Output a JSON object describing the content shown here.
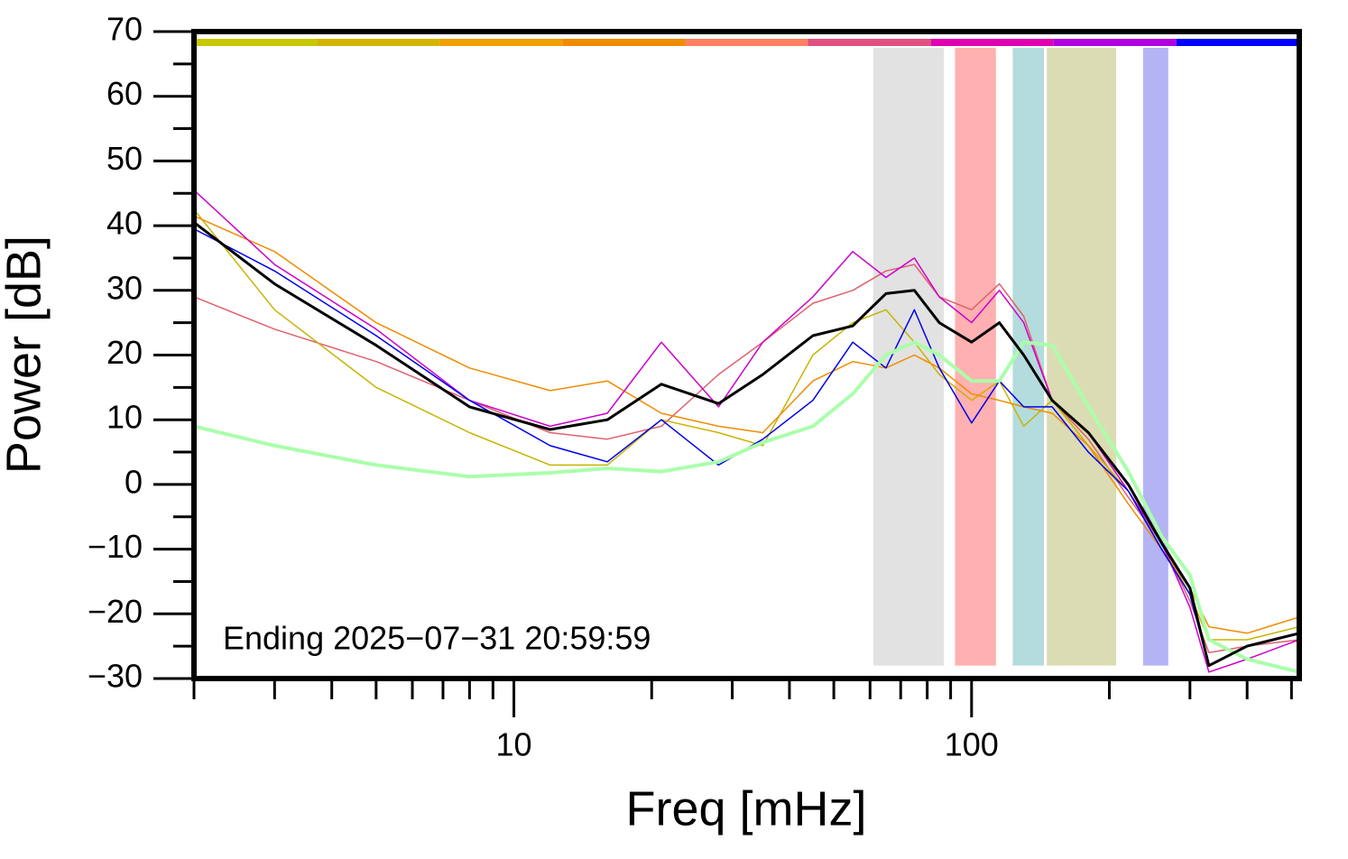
{
  "chart_data": {
    "type": "line",
    "annotation": "Ending 2025−07−31 20:59:59",
    "xlabel": "Freq [mHz]",
    "ylabel": "Power [dB]",
    "xscale": "log",
    "xlim": [
      2,
      520
    ],
    "ylim": [
      -30,
      70
    ],
    "xticks": [
      10,
      100
    ],
    "xminor": [
      2,
      3,
      4,
      5,
      6,
      7,
      8,
      9,
      20,
      30,
      40,
      50,
      60,
      70,
      80,
      90,
      200,
      300,
      400,
      500
    ],
    "yticks": [
      {
        "value": -30,
        "label": "−30"
      },
      {
        "value": -20,
        "label": "−20"
      },
      {
        "value": -10,
        "label": "−10"
      },
      0,
      10,
      20,
      30,
      40,
      50,
      60,
      70
    ],
    "yminor": [
      -25,
      -15,
      -5,
      5,
      15,
      25,
      35,
      45,
      55,
      65
    ],
    "band_ylim": [
      -28,
      67.5
    ],
    "bands": [
      {
        "x": [
          61,
          87
        ],
        "color": "#e2e2e2"
      },
      {
        "x": [
          92,
          113
        ],
        "color": "#ffb0b0"
      },
      {
        "x": [
          123,
          144
        ],
        "color": "#b4dcdc"
      },
      {
        "x": [
          146,
          207
        ],
        "color": "#dcdcb4"
      },
      {
        "x": [
          237,
          269
        ],
        "color": "#b4b4f5"
      }
    ],
    "color_bar": [
      "#c8c800",
      "#d4b400",
      "#f0a000",
      "#f08c00",
      "#ff7f60",
      "#e05080",
      "#e000b0",
      "#b000e0",
      "#0000ff"
    ],
    "x": [
      2,
      3,
      5,
      8,
      12,
      16,
      21,
      28,
      35,
      45,
      55,
      65,
      75,
      85,
      100,
      115,
      130,
      150,
      180,
      220,
      260,
      300,
      330,
      400,
      520
    ],
    "series": [
      {
        "color": "#e06070",
        "width": 1.5,
        "values": [
          29,
          24,
          19,
          13,
          8,
          7,
          9,
          17,
          22,
          28,
          30,
          33,
          34,
          29,
          27,
          31,
          26,
          13,
          7,
          -2,
          -9,
          -18,
          -26,
          -25,
          -24
        ]
      },
      {
        "color": "#c8b400",
        "width": 1.5,
        "values": [
          42.5,
          27,
          15,
          8,
          3,
          3,
          10,
          8,
          6,
          20,
          25,
          27,
          22,
          17,
          13,
          16,
          9,
          13,
          6,
          -1,
          -9,
          -17,
          -24,
          -24,
          -22
        ]
      },
      {
        "color": "#f08c00",
        "width": 1.5,
        "values": [
          41.5,
          36,
          25,
          18,
          14.5,
          16,
          11,
          9,
          8,
          16,
          19,
          18,
          20,
          18,
          14,
          13,
          12,
          11,
          6,
          -3,
          -10,
          -16,
          -22,
          -23,
          -20.5
        ]
      },
      {
        "color": "#cc00cc",
        "width": 1.5,
        "values": [
          45.5,
          34,
          24,
          13,
          9,
          11,
          22,
          12,
          22,
          29,
          36,
          32,
          35,
          29,
          25,
          30,
          25,
          13,
          8,
          -1,
          -9,
          -19,
          -29,
          -27,
          -24
        ]
      },
      {
        "color": "#0000ee",
        "width": 1.5,
        "values": [
          39.5,
          33,
          23,
          13,
          6,
          3.5,
          10,
          3,
          7,
          13,
          22,
          18,
          27,
          18,
          9.5,
          16,
          12,
          12,
          5,
          -1,
          -10,
          -17,
          -28,
          -25,
          -23
        ]
      },
      {
        "color": "#aaffaa",
        "width": 4,
        "values": [
          9,
          6,
          3,
          1.2,
          1.8,
          2.5,
          2,
          3.5,
          6.5,
          9,
          14,
          20,
          22,
          20,
          16,
          16,
          22,
          21.5,
          12,
          2,
          -8,
          -14,
          -24,
          -27,
          -29
        ]
      },
      {
        "color": "#000000",
        "width": 3,
        "values": [
          40.5,
          31,
          21.5,
          12,
          8.5,
          10,
          15.5,
          12.5,
          17,
          23,
          24.5,
          29.5,
          30,
          25,
          22,
          25,
          20,
          13,
          8,
          0,
          -9,
          -16,
          -28,
          -25,
          -23
        ]
      }
    ]
  }
}
